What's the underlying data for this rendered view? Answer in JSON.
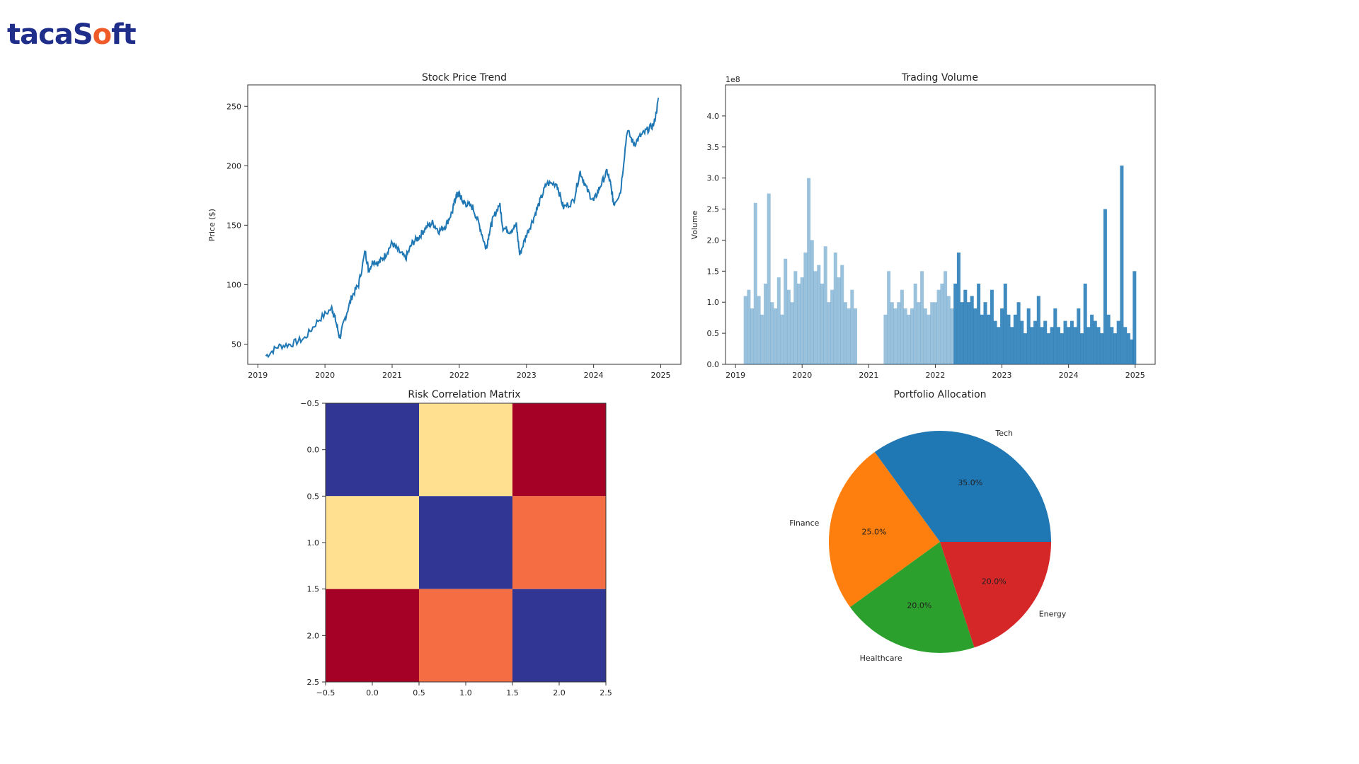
{
  "logo": {
    "text": "tacaSoft",
    "color": "#1f2e8a",
    "accent": "#f05a28"
  },
  "chart_data": [
    {
      "type": "line",
      "title": "Stock Price Trend",
      "xlabel": "",
      "ylabel": "Price ($)",
      "xlim": [
        2018.85,
        2025.3
      ],
      "ylim": [
        33,
        268
      ],
      "xticks": [
        "2019",
        "2020",
        "2021",
        "2022",
        "2023",
        "2024",
        "2025"
      ],
      "yticks": [
        50,
        100,
        150,
        200,
        250
      ],
      "color": "#1f77b4",
      "grid": false,
      "x": [
        2019.12,
        2019.3,
        2019.5,
        2019.7,
        2019.9,
        2020.1,
        2020.15,
        2020.22,
        2020.3,
        2020.4,
        2020.5,
        2020.6,
        2020.65,
        2020.72,
        2020.8,
        2020.9,
        2021.0,
        2021.1,
        2021.2,
        2021.3,
        2021.4,
        2021.5,
        2021.6,
        2021.7,
        2021.8,
        2021.9,
        2021.95,
        2022.0,
        2022.05,
        2022.1,
        2022.2,
        2022.3,
        2022.4,
        2022.45,
        2022.5,
        2022.6,
        2022.65,
        2022.75,
        2022.85,
        2022.9,
        2023.0,
        2023.1,
        2023.2,
        2023.3,
        2023.45,
        2023.55,
        2023.7,
        2023.8,
        2023.9,
        2024.0,
        2024.1,
        2024.2,
        2024.25,
        2024.3,
        2024.4,
        2024.5,
        2024.6,
        2024.7,
        2024.8,
        2024.9,
        2024.97
      ],
      "y": [
        40,
        48,
        50,
        55,
        70,
        80,
        72,
        55,
        72,
        90,
        100,
        128,
        112,
        120,
        118,
        125,
        135,
        128,
        122,
        135,
        140,
        148,
        152,
        145,
        150,
        162,
        175,
        176,
        170,
        168,
        165,
        150,
        130,
        145,
        155,
        168,
        148,
        145,
        150,
        125,
        142,
        155,
        170,
        185,
        185,
        165,
        170,
        195,
        180,
        170,
        183,
        195,
        185,
        168,
        178,
        230,
        218,
        225,
        230,
        235,
        257
      ]
    },
    {
      "type": "bar",
      "title": "Trading Volume",
      "xlabel": "",
      "ylabel": "Volume",
      "offset_label": "1e8",
      "xlim": [
        2018.85,
        2025.3
      ],
      "ylim": [
        0,
        4.5
      ],
      "xticks": [
        "2019",
        "2020",
        "2021",
        "2022",
        "2023",
        "2024",
        "2025"
      ],
      "yticks": [
        "0.0",
        "0.5",
        "1.0",
        "1.5",
        "2.0",
        "2.5",
        "3.0",
        "3.5",
        "4.0"
      ],
      "color": "#1f77b4",
      "x": [
        2019.15,
        2019.2,
        2019.25,
        2019.3,
        2019.35,
        2019.4,
        2019.45,
        2019.5,
        2019.55,
        2019.6,
        2019.65,
        2019.7,
        2019.75,
        2019.8,
        2019.85,
        2019.9,
        2019.95,
        2020.0,
        2020.05,
        2020.1,
        2020.15,
        2020.2,
        2020.25,
        2020.3,
        2020.35,
        2020.4,
        2020.45,
        2020.5,
        2020.55,
        2020.6,
        2020.65,
        2020.7,
        2020.75,
        2020.8,
        2021.25,
        2021.3,
        2021.35,
        2021.4,
        2021.45,
        2021.5,
        2021.55,
        2021.6,
        2021.65,
        2021.7,
        2021.75,
        2021.8,
        2021.85,
        2021.9,
        2021.95,
        2022.0,
        2022.05,
        2022.1,
        2022.15,
        2022.2,
        2022.25,
        2022.3,
        2022.35,
        2022.4,
        2022.45,
        2022.5,
        2022.55,
        2022.6,
        2022.65,
        2022.7,
        2022.75,
        2022.8,
        2022.85,
        2022.9,
        2022.95,
        2023.0,
        2023.05,
        2023.1,
        2023.15,
        2023.2,
        2023.25,
        2023.3,
        2023.35,
        2023.4,
        2023.45,
        2023.5,
        2023.55,
        2023.6,
        2023.65,
        2023.7,
        2023.75,
        2023.8,
        2023.85,
        2023.9,
        2023.95,
        2024.0,
        2024.05,
        2024.1,
        2024.15,
        2024.2,
        2024.25,
        2024.3,
        2024.35,
        2024.4,
        2024.45,
        2024.5,
        2024.55,
        2024.6,
        2024.65,
        2024.7,
        2024.75,
        2024.8,
        2024.85,
        2024.9,
        2024.95,
        2024.99
      ],
      "values": [
        1.1,
        1.2,
        0.9,
        2.6,
        1.1,
        0.8,
        1.3,
        2.75,
        1.0,
        0.9,
        1.4,
        0.8,
        1.7,
        1.2,
        1.0,
        1.5,
        1.3,
        1.4,
        1.8,
        3.0,
        2.0,
        1.5,
        1.6,
        1.3,
        1.9,
        1.0,
        1.2,
        1.8,
        1.4,
        1.6,
        1.0,
        0.9,
        1.2,
        0.9,
        0.8,
        1.5,
        1.0,
        0.9,
        1.0,
        1.2,
        0.9,
        0.8,
        0.9,
        1.3,
        1.0,
        1.5,
        0.9,
        0.8,
        1.0,
        1.0,
        1.2,
        1.3,
        1.5,
        1.1,
        0.9,
        1.3,
        1.8,
        1.0,
        1.2,
        1.0,
        1.1,
        0.9,
        1.3,
        0.8,
        1.0,
        0.8,
        1.2,
        0.7,
        0.6,
        0.9,
        1.3,
        0.8,
        0.6,
        0.8,
        1.0,
        0.7,
        0.5,
        0.9,
        0.6,
        0.7,
        1.1,
        0.6,
        0.7,
        0.5,
        0.6,
        0.9,
        0.6,
        0.5,
        0.7,
        0.6,
        0.7,
        0.6,
        0.9,
        0.5,
        1.3,
        0.6,
        0.8,
        0.7,
        0.6,
        0.5,
        2.5,
        0.8,
        0.6,
        0.5,
        0.7,
        3.2,
        0.6,
        0.5,
        0.4,
        1.5
      ]
    },
    {
      "type": "heatmap",
      "title": "Risk Correlation Matrix",
      "xticks": [
        "−0.5",
        "0.0",
        "0.5",
        "1.0",
        "1.5",
        "2.0",
        "2.5"
      ],
      "yticks": [
        "−0.5",
        "0.0",
        "0.5",
        "1.0",
        "1.5",
        "2.0",
        "2.5"
      ],
      "colormap": "RdYlBu_r",
      "values": [
        [
          1.0,
          0.3,
          -0.8
        ],
        [
          0.3,
          1.0,
          -0.5
        ],
        [
          -0.8,
          -0.5,
          1.0
        ]
      ],
      "colors": [
        [
          "#313695",
          "#fee090",
          "#a50026"
        ],
        [
          "#fee090",
          "#313695",
          "#f46d43"
        ],
        [
          "#a50026",
          "#f46d43",
          "#313695"
        ]
      ]
    },
    {
      "type": "pie",
      "title": "Portfolio Allocation",
      "labels": [
        "Tech",
        "Finance",
        "Healthcare",
        "Energy"
      ],
      "values": [
        35,
        25,
        20,
        20
      ],
      "pct_labels": [
        "35.0%",
        "25.0%",
        "20.0%",
        "20.0%"
      ],
      "colors": [
        "#1f77b4",
        "#ff7f0e",
        "#2ca02c",
        "#d62728"
      ]
    }
  ]
}
